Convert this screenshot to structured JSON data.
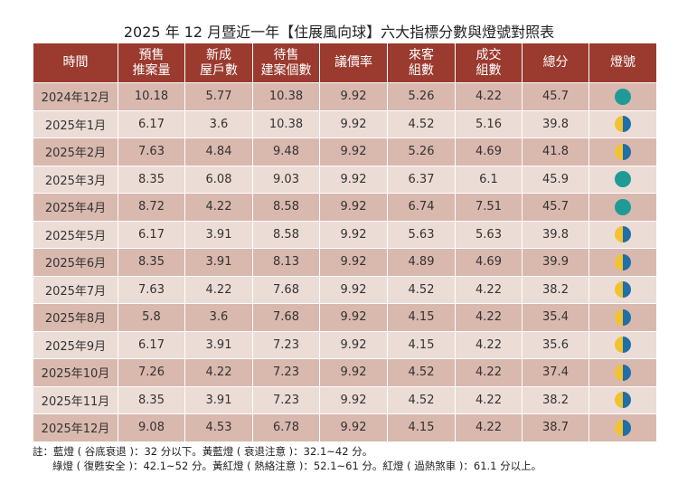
{
  "title": "2025 年 12 月暨近一年【住展風向球】六大指標分數與燈號對照表",
  "headers": [
    "時間",
    "預售\n推案量",
    "新成\n屋戶數",
    "待售\n建案個數",
    "議價率",
    "來客\n組數",
    "成交\n組數",
    "總分",
    "燈號"
  ],
  "rows": [
    [
      "2024年12月",
      "10.18",
      "5.77",
      "10.38",
      "9.92",
      "5.26",
      "4.22",
      "45.7",
      "green"
    ],
    [
      "2025年1月",
      "6.17",
      "3.6",
      "10.38",
      "9.92",
      "4.52",
      "5.16",
      "39.8",
      "yellow-blue"
    ],
    [
      "2025年2月",
      "7.63",
      "4.84",
      "9.48",
      "9.92",
      "5.26",
      "4.69",
      "41.8",
      "yellow-blue"
    ],
    [
      "2025年3月",
      "8.35",
      "6.08",
      "9.03",
      "9.92",
      "6.37",
      "6.1",
      "45.9",
      "green"
    ],
    [
      "2025年4月",
      "8.72",
      "4.22",
      "8.58",
      "9.92",
      "6.74",
      "7.51",
      "45.7",
      "green"
    ],
    [
      "2025年5月",
      "6.17",
      "3.91",
      "8.58",
      "9.92",
      "5.63",
      "5.63",
      "39.8",
      "yellow-blue"
    ],
    [
      "2025年6月",
      "8.35",
      "3.91",
      "8.13",
      "9.92",
      "4.89",
      "4.69",
      "39.9",
      "yellow-blue"
    ],
    [
      "2025年7月",
      "7.63",
      "4.22",
      "7.68",
      "9.92",
      "4.52",
      "4.22",
      "38.2",
      "yellow-blue"
    ],
    [
      "2025年8月",
      "5.8",
      "3.6",
      "7.68",
      "9.92",
      "4.15",
      "4.22",
      "35.4",
      "yellow-blue"
    ],
    [
      "2025年9月",
      "6.17",
      "3.91",
      "7.23",
      "9.92",
      "4.15",
      "4.22",
      "35.6",
      "yellow-blue"
    ],
    [
      "2025年10月",
      "7.26",
      "4.22",
      "7.23",
      "9.92",
      "4.52",
      "4.22",
      "37.4",
      "yellow-blue"
    ],
    [
      "2025年11月",
      "8.35",
      "3.91",
      "7.23",
      "9.92",
      "4.52",
      "4.22",
      "38.2",
      "yellow-blue"
    ],
    [
      "2025年12月",
      "9.08",
      "4.53",
      "6.78",
      "9.92",
      "4.15",
      "4.22",
      "38.7",
      "yellow-blue"
    ]
  ],
  "colors": {
    "header": "#9b3a2e",
    "row_odd": "#d9b8ae",
    "row_even": "#ecdcd6",
    "green": "#1f9a97",
    "yellow": "#f2c232",
    "blue": "#1f6fa8"
  },
  "note": {
    "line1": "註：藍燈 ( 谷底衰退 )：32 分以下。黃藍燈 ( 衰退注意 )：32.1~42 分。",
    "line2": "綠燈 ( 復甦安全 )：42.1~52 分。黃紅燈 ( 熱絡注意 )：52.1~61 分。紅燈 ( 過熱煞車 )：61.1 分以上。"
  }
}
